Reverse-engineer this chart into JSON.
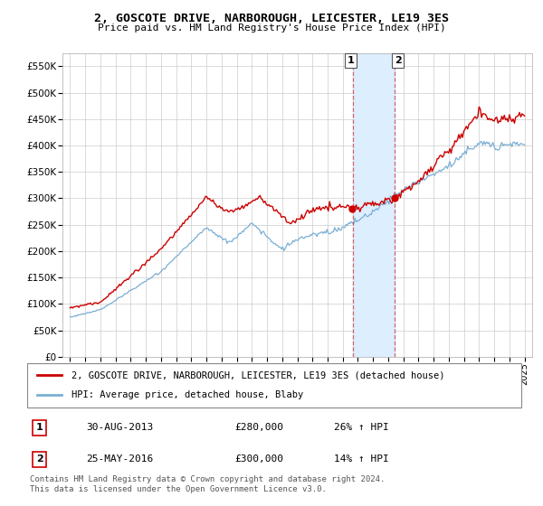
{
  "title": "2, GOSCOTE DRIVE, NARBOROUGH, LEICESTER, LE19 3ES",
  "subtitle": "Price paid vs. HM Land Registry's House Price Index (HPI)",
  "property_label": "2, GOSCOTE DRIVE, NARBOROUGH, LEICESTER, LE19 3ES (detached house)",
  "hpi_label": "HPI: Average price, detached house, Blaby",
  "sale1_date": "30-AUG-2013",
  "sale1_price": 280000,
  "sale1_hpi": "26% ↑ HPI",
  "sale2_date": "25-MAY-2016",
  "sale2_price": 300000,
  "sale2_hpi": "14% ↑ HPI",
  "footer": "Contains HM Land Registry data © Crown copyright and database right 2024.\nThis data is licensed under the Open Government Licence v3.0.",
  "property_color": "#cc0000",
  "hpi_color": "#7aafd4",
  "highlight_color": "#ddeeff",
  "ylim": [
    0,
    575000
  ],
  "yticks": [
    0,
    50000,
    100000,
    150000,
    200000,
    250000,
    300000,
    350000,
    400000,
    450000,
    500000,
    550000
  ],
  "ytick_labels": [
    "£0",
    "£50K",
    "£100K",
    "£150K",
    "£200K",
    "£250K",
    "£300K",
    "£350K",
    "£400K",
    "£450K",
    "£500K",
    "£550K"
  ],
  "background_color": "#ffffff",
  "grid_color": "#cccccc",
  "sale1_year": 2013.664,
  "sale2_year": 2016.397
}
